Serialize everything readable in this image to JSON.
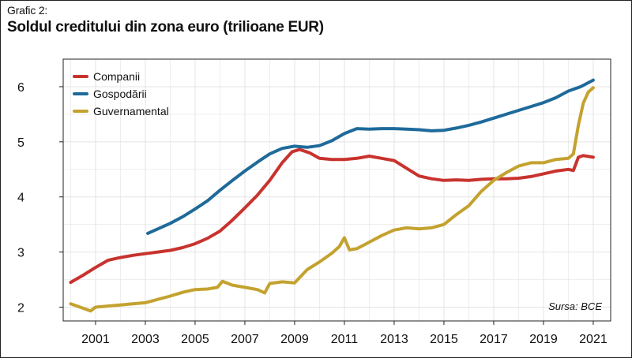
{
  "header": {
    "supertitle": "Grafic 2:",
    "title": "Soldul creditului din zona euro (trilioane EUR)"
  },
  "source": "Sursa: BCE",
  "colors": {
    "Companii": "#c8332e",
    "Gospodării": "#1e6a9a",
    "Guvernamental": "#c4a22f",
    "grid": "#e4e4e4",
    "axis": "#222222"
  },
  "chart_data": {
    "type": "line",
    "title": "Soldul creditului din zona euro (trilioane EUR)",
    "xlabel": "",
    "ylabel": "",
    "xlim": [
      1999.7,
      2021.7
    ],
    "ylim": [
      1.75,
      6.5
    ],
    "x_ticks": [
      2001,
      2003,
      2005,
      2007,
      2009,
      2011,
      2013,
      2015,
      2017,
      2019,
      2021
    ],
    "x_tick_labels": [
      "2001",
      "2003",
      "2005",
      "2007",
      "2009",
      "2011",
      "2013",
      "2015",
      "2017",
      "2019",
      "2021"
    ],
    "y_ticks": [
      2,
      3,
      4,
      5,
      6
    ],
    "y_tick_labels": [
      "2",
      "3",
      "4",
      "5",
      "6"
    ],
    "grid": true,
    "legend_position": "top-left",
    "series": [
      {
        "name": "Companii",
        "x": [
          2000.0,
          2000.5,
          2001.0,
          2001.5,
          2002.0,
          2002.5,
          2003.0,
          2003.5,
          2004.0,
          2004.5,
          2005.0,
          2005.5,
          2006.0,
          2006.5,
          2007.0,
          2007.5,
          2008.0,
          2008.5,
          2008.9,
          2009.2,
          2009.6,
          2010.0,
          2010.5,
          2011.0,
          2011.5,
          2012.0,
          2012.5,
          2013.0,
          2013.5,
          2014.0,
          2014.5,
          2015.0,
          2015.5,
          2016.0,
          2016.5,
          2017.0,
          2017.5,
          2018.0,
          2018.5,
          2019.0,
          2019.5,
          2020.0,
          2020.2,
          2020.4,
          2020.6,
          2021.0
        ],
        "y": [
          2.45,
          2.58,
          2.72,
          2.85,
          2.9,
          2.94,
          2.97,
          3.0,
          3.03,
          3.08,
          3.15,
          3.25,
          3.38,
          3.58,
          3.8,
          4.03,
          4.3,
          4.62,
          4.82,
          4.86,
          4.8,
          4.7,
          4.68,
          4.68,
          4.7,
          4.74,
          4.7,
          4.66,
          4.52,
          4.38,
          4.33,
          4.3,
          4.31,
          4.3,
          4.32,
          4.33,
          4.33,
          4.34,
          4.37,
          4.42,
          4.47,
          4.5,
          4.48,
          4.72,
          4.75,
          4.72
        ]
      },
      {
        "name": "Gospodării",
        "x": [
          2003.1,
          2003.5,
          2004.0,
          2004.5,
          2005.0,
          2005.5,
          2006.0,
          2006.5,
          2007.0,
          2007.5,
          2008.0,
          2008.5,
          2009.0,
          2009.5,
          2010.0,
          2010.5,
          2011.0,
          2011.5,
          2012.0,
          2012.5,
          2013.0,
          2013.5,
          2014.0,
          2014.5,
          2015.0,
          2015.5,
          2016.0,
          2016.5,
          2017.0,
          2017.5,
          2018.0,
          2018.5,
          2019.0,
          2019.5,
          2020.0,
          2020.5,
          2021.0
        ],
        "y": [
          3.34,
          3.42,
          3.52,
          3.64,
          3.78,
          3.93,
          4.12,
          4.3,
          4.47,
          4.63,
          4.78,
          4.88,
          4.92,
          4.9,
          4.93,
          5.02,
          5.15,
          5.24,
          5.23,
          5.24,
          5.24,
          5.23,
          5.22,
          5.2,
          5.21,
          5.25,
          5.3,
          5.36,
          5.43,
          5.5,
          5.57,
          5.64,
          5.71,
          5.8,
          5.92,
          6.0,
          6.12
        ]
      },
      {
        "name": "Guvernamental",
        "x": [
          2000.0,
          2000.5,
          2000.8,
          2001.0,
          2001.5,
          2002.0,
          2002.5,
          2003.0,
          2003.5,
          2004.0,
          2004.5,
          2005.0,
          2005.5,
          2005.9,
          2006.1,
          2006.5,
          2007.0,
          2007.5,
          2007.8,
          2008.0,
          2008.5,
          2009.0,
          2009.5,
          2010.0,
          2010.5,
          2010.8,
          2011.0,
          2011.2,
          2011.5,
          2012.0,
          2012.5,
          2013.0,
          2013.5,
          2014.0,
          2014.5,
          2015.0,
          2015.5,
          2016.0,
          2016.5,
          2017.0,
          2017.5,
          2018.0,
          2018.5,
          2019.0,
          2019.5,
          2020.0,
          2020.2,
          2020.4,
          2020.6,
          2020.8,
          2021.0
        ],
        "y": [
          2.06,
          1.98,
          1.93,
          2.0,
          2.02,
          2.04,
          2.06,
          2.08,
          2.14,
          2.2,
          2.27,
          2.32,
          2.33,
          2.36,
          2.47,
          2.4,
          2.36,
          2.32,
          2.26,
          2.43,
          2.46,
          2.44,
          2.68,
          2.82,
          2.98,
          3.1,
          3.26,
          3.04,
          3.06,
          3.18,
          3.3,
          3.4,
          3.44,
          3.42,
          3.44,
          3.5,
          3.68,
          3.84,
          4.1,
          4.3,
          4.44,
          4.56,
          4.62,
          4.62,
          4.68,
          4.7,
          4.78,
          5.3,
          5.7,
          5.9,
          5.98
        ]
      }
    ]
  }
}
